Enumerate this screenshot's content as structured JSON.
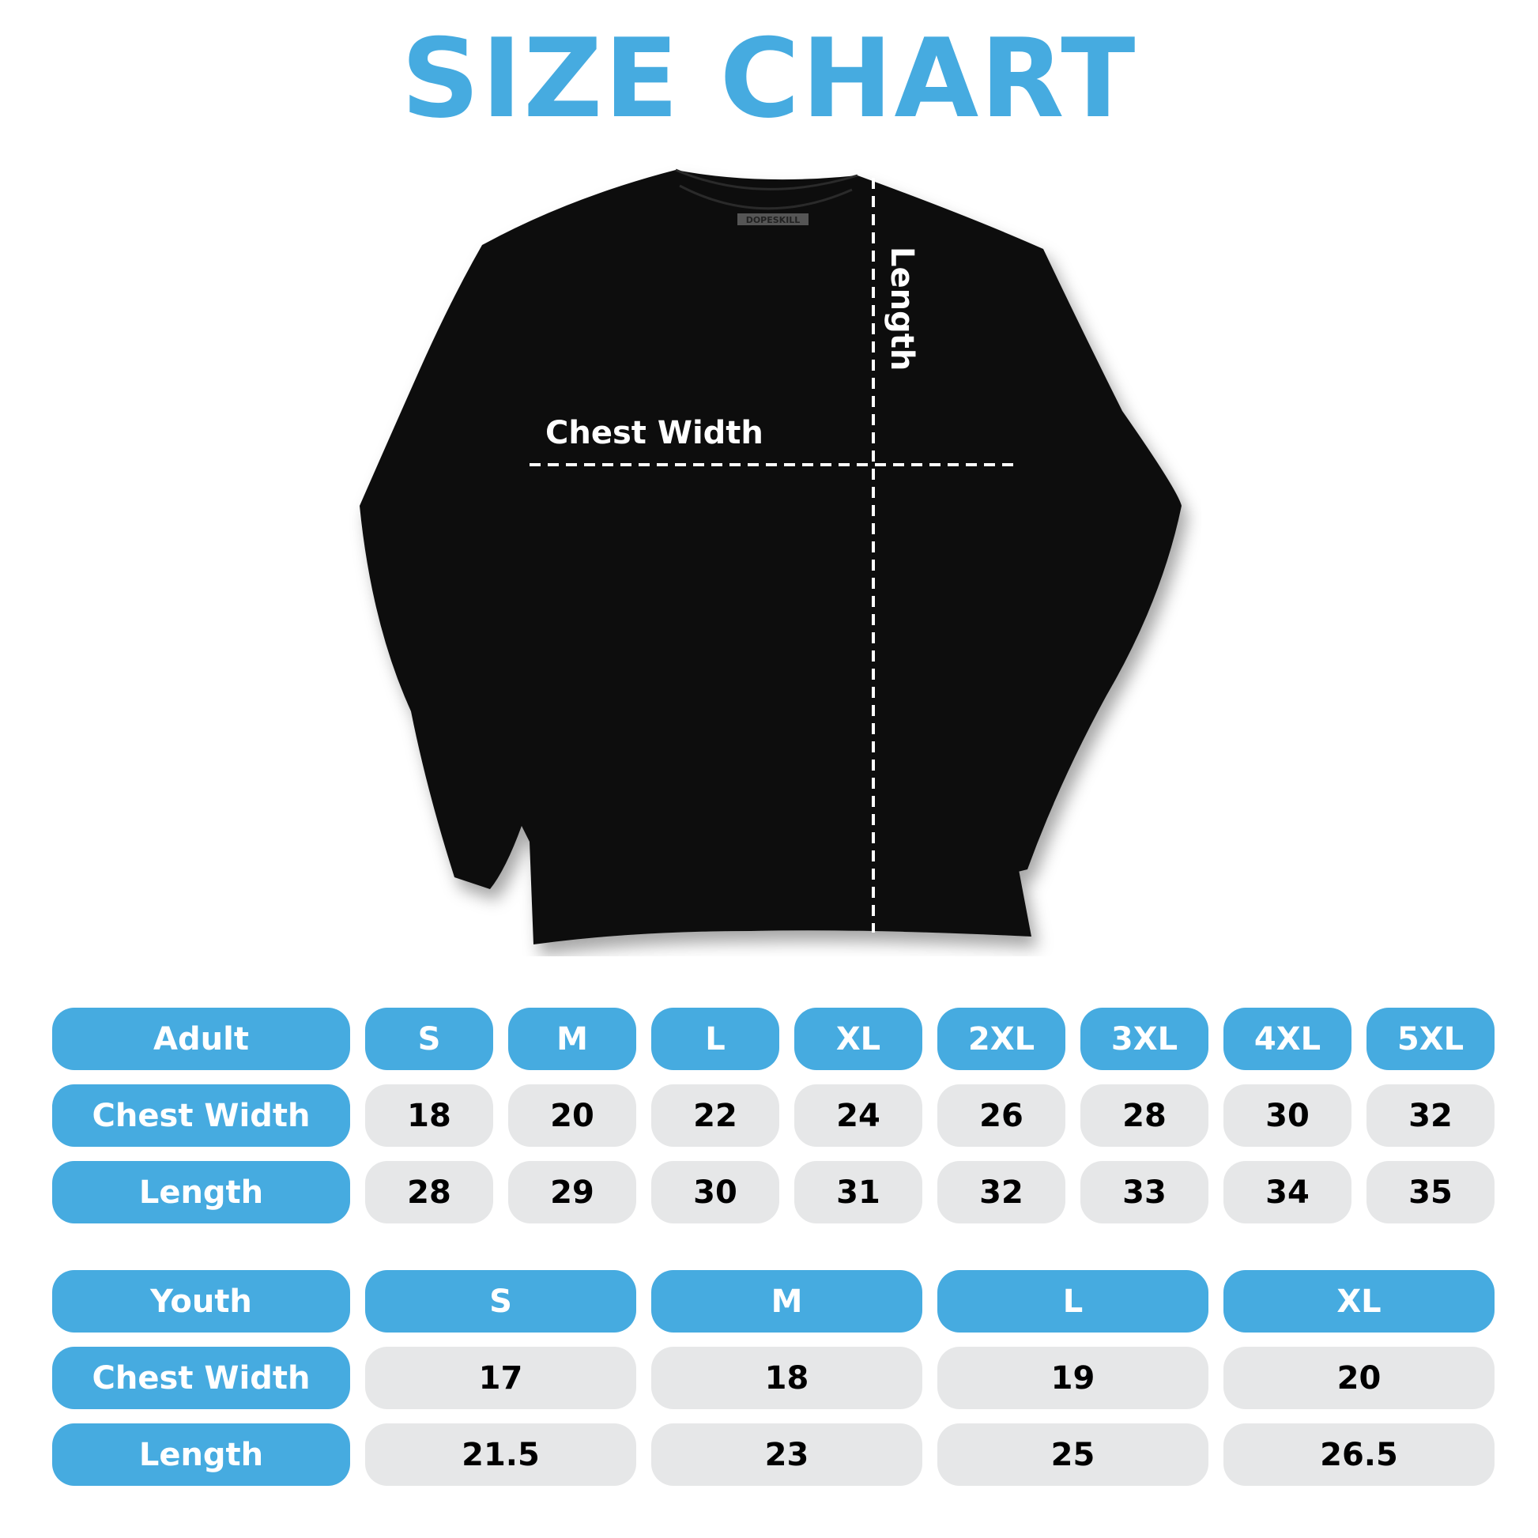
{
  "title": "SIZE CHART",
  "brand_tag": "DOPESKILL",
  "diagram": {
    "chest_label": "Chest Width",
    "length_label": "Length"
  },
  "colors": {
    "accent": "#46abe0",
    "cell_bg": "#e6e7e8",
    "shirt": "#111111"
  },
  "adult": {
    "header": "Adult",
    "sizes": [
      "S",
      "M",
      "L",
      "XL",
      "2XL",
      "3XL",
      "4XL",
      "5XL"
    ],
    "rows": [
      {
        "label": "Chest Width",
        "values": [
          "18",
          "20",
          "22",
          "24",
          "26",
          "28",
          "30",
          "32"
        ]
      },
      {
        "label": "Length",
        "values": [
          "28",
          "29",
          "30",
          "31",
          "32",
          "33",
          "34",
          "35"
        ]
      }
    ]
  },
  "youth": {
    "header": "Youth",
    "sizes": [
      "S",
      "M",
      "L",
      "XL"
    ],
    "rows": [
      {
        "label": "Chest Width",
        "values": [
          "17",
          "18",
          "19",
          "20"
        ]
      },
      {
        "label": "Length",
        "values": [
          "21.5",
          "23",
          "25",
          "26.5"
        ]
      }
    ]
  }
}
